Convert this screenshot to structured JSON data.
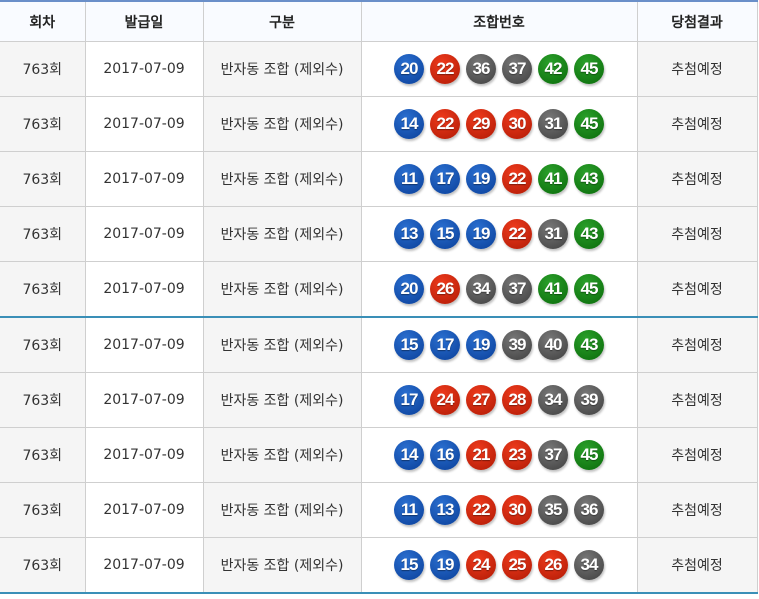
{
  "headers": [
    "회차",
    "발급일",
    "구분",
    "조합번호",
    "당첨결과"
  ],
  "ball_colors": {
    "1-10": "#e0a800",
    "11-20": "#0d4fb0",
    "21-30": "#c8240c",
    "31-40": "#555555",
    "41-45": "#137f13"
  },
  "rows": [
    {
      "round": "763회",
      "date": "2017-07-09",
      "type": "반자동 조합 (제외수)",
      "numbers": [
        20,
        22,
        36,
        37,
        42,
        45
      ],
      "result": "추첨예정"
    },
    {
      "round": "763회",
      "date": "2017-07-09",
      "type": "반자동 조합 (제외수)",
      "numbers": [
        14,
        22,
        29,
        30,
        31,
        45
      ],
      "result": "추첨예정"
    },
    {
      "round": "763회",
      "date": "2017-07-09",
      "type": "반자동 조합 (제외수)",
      "numbers": [
        11,
        17,
        19,
        22,
        41,
        43
      ],
      "result": "추첨예정"
    },
    {
      "round": "763회",
      "date": "2017-07-09",
      "type": "반자동 조합 (제외수)",
      "numbers": [
        13,
        15,
        19,
        22,
        31,
        43
      ],
      "result": "추첨예정"
    },
    {
      "round": "763회",
      "date": "2017-07-09",
      "type": "반자동 조합 (제외수)",
      "numbers": [
        20,
        26,
        34,
        37,
        41,
        45
      ],
      "result": "추첨예정"
    },
    {
      "round": "763회",
      "date": "2017-07-09",
      "type": "반자동 조합 (제외수)",
      "numbers": [
        15,
        17,
        19,
        39,
        40,
        43
      ],
      "result": "추첨예정"
    },
    {
      "round": "763회",
      "date": "2017-07-09",
      "type": "반자동 조합 (제외수)",
      "numbers": [
        17,
        24,
        27,
        28,
        34,
        39
      ],
      "result": "추첨예정"
    },
    {
      "round": "763회",
      "date": "2017-07-09",
      "type": "반자동 조합 (제외수)",
      "numbers": [
        14,
        16,
        21,
        23,
        37,
        45
      ],
      "result": "추첨예정"
    },
    {
      "round": "763회",
      "date": "2017-07-09",
      "type": "반자동 조합 (제외수)",
      "numbers": [
        11,
        13,
        22,
        30,
        35,
        36
      ],
      "result": "추첨예정"
    },
    {
      "round": "763회",
      "date": "2017-07-09",
      "type": "반자동 조합 (제외수)",
      "numbers": [
        15,
        19,
        24,
        25,
        26,
        34
      ],
      "result": "추첨예정"
    }
  ]
}
